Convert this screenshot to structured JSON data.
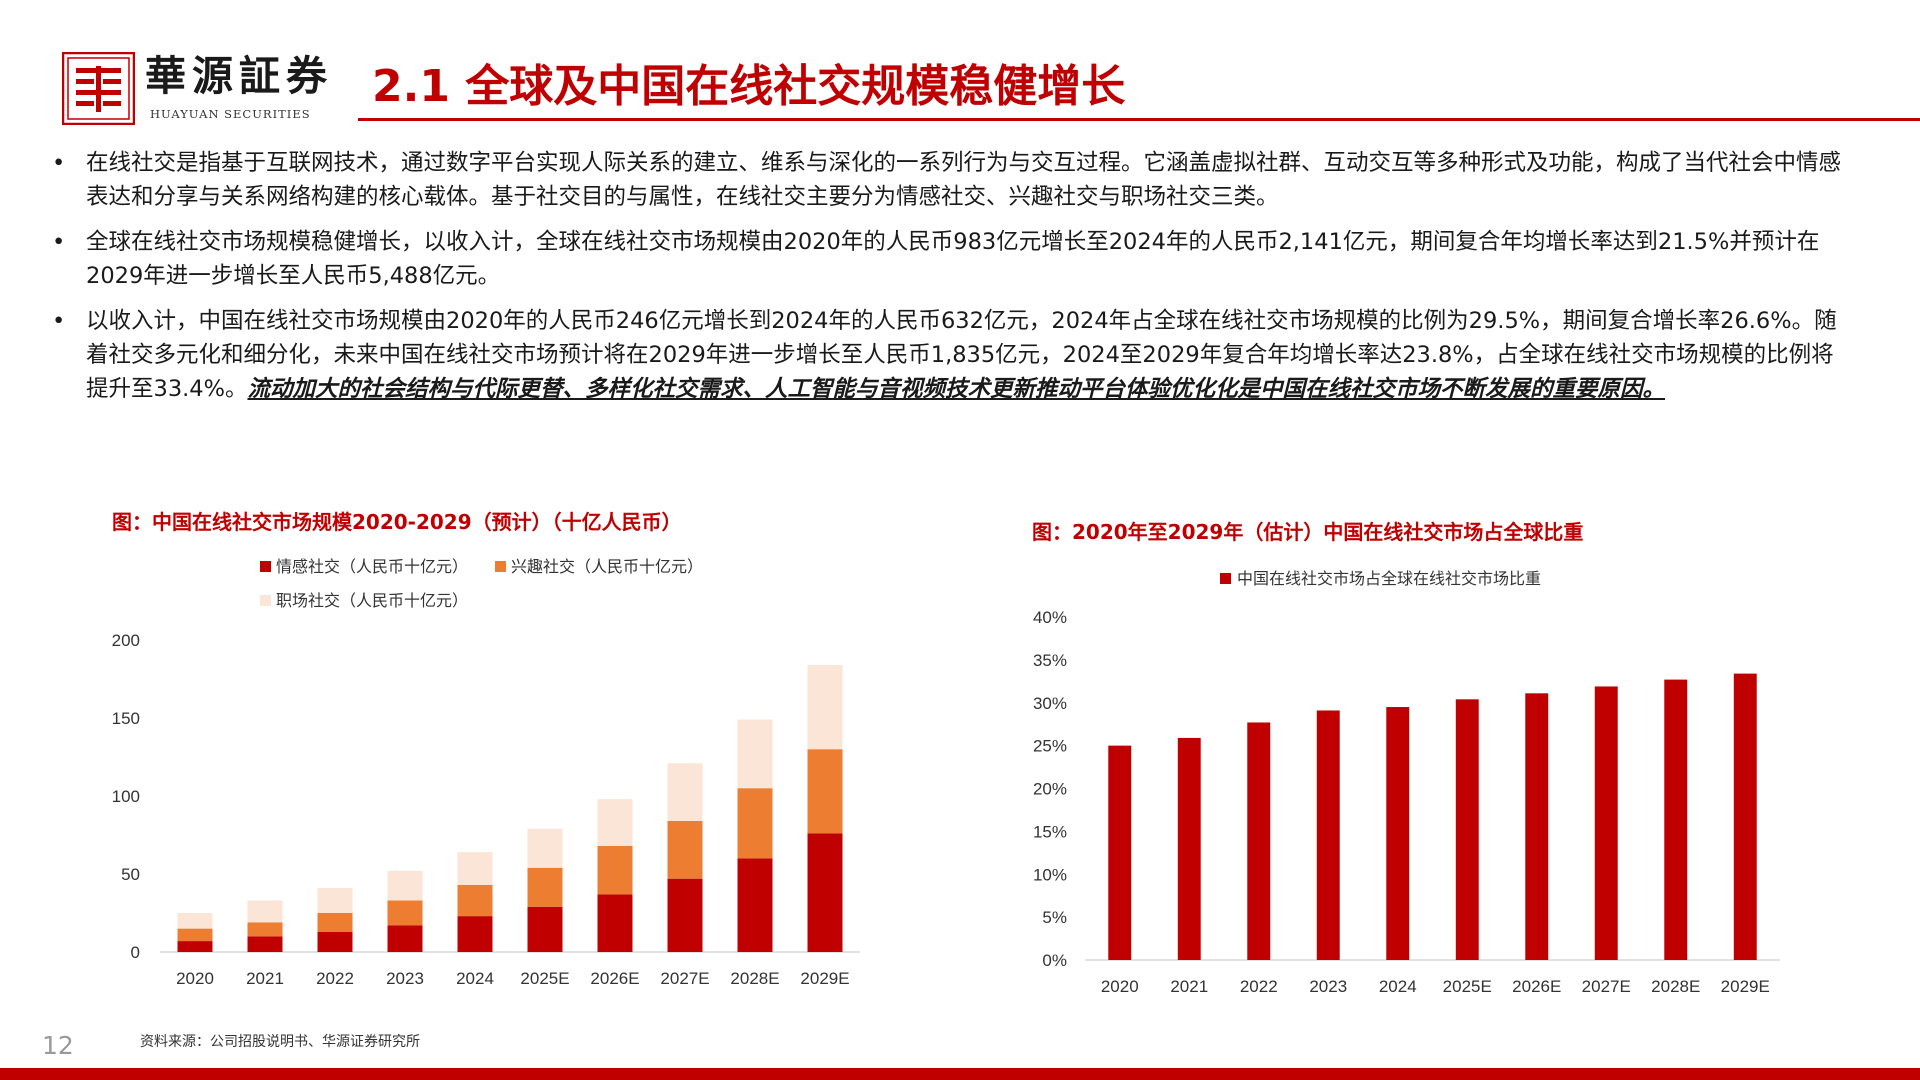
{
  "header": {
    "brand_cn": "華源証券",
    "brand_en": "HUAYUAN SECURITIES",
    "title": "2.1 全球及中国在线社交规模稳健增长"
  },
  "bullets": [
    {
      "text": "在线社交是指基于互联网技术，通过数字平台实现人际关系的建立、维系与深化的一系列行为与交互过程。它涵盖虚拟社群、互动交互等多种形式及功能，构成了当代社会中情感表达和分享与关系网络构建的核心载体。基于社交目的与属性，在线社交主要分为情感社交、兴趣社交与职场社交三类。"
    },
    {
      "text": "全球在线社交市场规模稳健增长，以收入计，全球在线社交市场规模由2020年的人民币983亿元增长至2024年的人民币2,141亿元，期间复合年均增长率达到21.5%并预计在2029年进一步增长至人民币5,488亿元。"
    },
    {
      "text": "以收入计，中国在线社交市场规模由2020年的人民币246亿元增长到2024年的人民币632亿元，2024年占全球在线社交市场规模的比例为29.5%，期间复合增长率26.6%。随着社交多元化和细分化，未来中国在线社交市场预计将在2029年进一步增长至人民币1,835亿元，2024至2029年复合年均增长率达23.8%，占全球在线社交市场规模的比例将提升至33.4%。",
      "emphasis": "流动加大的社会结构与代际更替、多样化社交需求、人工智能与音视频技术更新推动平台体验优化化是中国在线社交市场不断发展的重要原因。"
    }
  ],
  "chart_left_title": "图：中国在线社交市场规模2020-2029（预计）（十亿人民币）",
  "chart_right_title": "图：2020年至2029年（估计）中国在线社交市场占全球比重",
  "chart_data": [
    {
      "type": "bar",
      "stacked": true,
      "categories": [
        "2020",
        "2021",
        "2022",
        "2023",
        "2024",
        "2025E",
        "2026E",
        "2027E",
        "2028E",
        "2029E"
      ],
      "series": [
        {
          "name": "情感社交（人民币十亿元）",
          "color": "#c00000",
          "values": [
            7,
            10,
            13,
            17,
            23,
            29,
            37,
            47,
            60,
            76
          ]
        },
        {
          "name": "兴趣社交（人民币十亿元）",
          "color": "#ed7d31",
          "values": [
            8,
            9,
            12,
            16,
            20,
            25,
            31,
            37,
            45,
            54
          ]
        },
        {
          "name": "职场社交（人民币十亿元）",
          "color": "#fbe5d6",
          "values": [
            10,
            14,
            16,
            19,
            21,
            25,
            30,
            37,
            44,
            54
          ]
        }
      ],
      "yticks": [
        "0",
        "50",
        "100",
        "150",
        "200"
      ],
      "ylim": [
        0,
        200
      ],
      "legend_position": "top-left"
    },
    {
      "type": "bar",
      "categories": [
        "2020",
        "2021",
        "2022",
        "2023",
        "2024",
        "2025E",
        "2026E",
        "2027E",
        "2028E",
        "2029E"
      ],
      "series": [
        {
          "name": "中国在线社交市场占全球在线社交市场比重",
          "color": "#c00000",
          "values": [
            25.0,
            25.9,
            27.7,
            29.1,
            29.5,
            30.4,
            31.1,
            31.9,
            32.7,
            33.4
          ]
        }
      ],
      "yticks": [
        "0%",
        "5%",
        "10%",
        "15%",
        "20%",
        "25%",
        "30%",
        "35%",
        "40%"
      ],
      "ylim": [
        0,
        40
      ],
      "legend_position": "top"
    }
  ],
  "footer": {
    "source": "资料来源：公司招股说明书、华源证券研究所",
    "page": "12"
  },
  "colors": {
    "accent": "#c00000",
    "orange": "#ed7d31",
    "peach": "#fbe5d6"
  }
}
